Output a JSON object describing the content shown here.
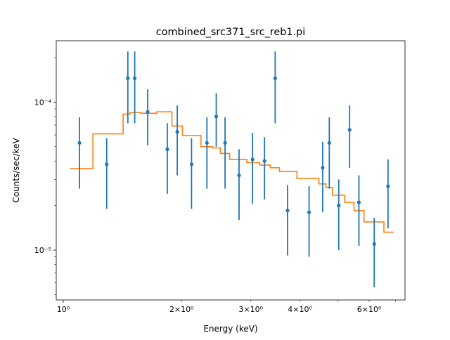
{
  "chart_data": {
    "type": "scatter",
    "title": "combined_src371_src_reb1.pi",
    "xlabel": "Energy (keV)",
    "ylabel": "Counts/sec/keV",
    "xscale": "log",
    "yscale": "log",
    "xlim": [
      0.96,
      7.4
    ],
    "ylim": [
      4.6e-06,
      0.00026
    ],
    "grid": false,
    "x_major_ticks": [
      {
        "value": 1,
        "label": "10⁰"
      }
    ],
    "x_minor_ticks": [
      {
        "value": 2,
        "label": "2×10⁰"
      },
      {
        "value": 3,
        "label": "3×10⁰"
      },
      {
        "value": 4,
        "label": "4×10⁰"
      },
      {
        "value": 5,
        "label": ""
      },
      {
        "value": 6,
        "label": "6×10⁰"
      },
      {
        "value": 7,
        "label": ""
      }
    ],
    "y_major_ticks": [
      {
        "value": 1e-05,
        "label": "10⁻⁵"
      },
      {
        "value": 0.0001,
        "label": "10⁻⁴"
      }
    ],
    "y_minor_values": [
      5e-06,
      6e-06,
      7e-06,
      8e-06,
      9e-06,
      2e-05,
      3e-05,
      4e-05,
      5e-05,
      6e-05,
      7e-05,
      8e-05,
      9e-05,
      0.0002
    ],
    "colors": {
      "data": "#1f77b4",
      "model": "#ff7f0e"
    },
    "series": [
      {
        "kind": "errorbar",
        "points": [
          {
            "x": 1.1,
            "y": 5.3e-05,
            "ylo": 2.6e-05,
            "yhi": 7.9e-05
          },
          {
            "x": 1.29,
            "y": 3.8e-05,
            "ylo": 1.9e-05,
            "yhi": 5.7e-05
          },
          {
            "x": 1.46,
            "y": 0.000145,
            "ylo": 7.2e-05,
            "yhi": 0.00022
          },
          {
            "x": 1.52,
            "y": 0.000145,
            "ylo": 7.2e-05,
            "yhi": 0.00022
          },
          {
            "x": 1.64,
            "y": 8.6e-05,
            "ylo": 5.1e-05,
            "yhi": 0.000122
          },
          {
            "x": 1.84,
            "y": 4.8e-05,
            "ylo": 2.4e-05,
            "yhi": 7.2e-05
          },
          {
            "x": 1.95,
            "y": 6.3e-05,
            "ylo": 3.2e-05,
            "yhi": 9.5e-05
          },
          {
            "x": 2.12,
            "y": 3.8e-05,
            "ylo": 1.9e-05,
            "yhi": 5.7e-05
          },
          {
            "x": 2.32,
            "y": 5.3e-05,
            "ylo": 2.6e-05,
            "yhi": 7.9e-05
          },
          {
            "x": 2.45,
            "y": 8e-05,
            "ylo": 5e-05,
            "yhi": 0.000115
          },
          {
            "x": 2.58,
            "y": 5.3e-05,
            "ylo": 2.6e-05,
            "yhi": 7.9e-05
          },
          {
            "x": 2.8,
            "y": 3.2e-05,
            "ylo": 1.6e-05,
            "yhi": 4.8e-05
          },
          {
            "x": 3.03,
            "y": 4.1e-05,
            "ylo": 2.05e-05,
            "yhi": 6.2e-05
          },
          {
            "x": 3.25,
            "y": 4e-05,
            "ylo": 2.2e-05,
            "yhi": 5.8e-05
          },
          {
            "x": 3.46,
            "y": 0.000145,
            "ylo": 7.2e-05,
            "yhi": 0.00022
          },
          {
            "x": 3.72,
            "y": 1.85e-05,
            "ylo": 9.2e-06,
            "yhi": 2.75e-05
          },
          {
            "x": 4.22,
            "y": 1.8e-05,
            "ylo": 9e-06,
            "yhi": 2.7e-05
          },
          {
            "x": 4.57,
            "y": 3.6e-05,
            "ylo": 1.8e-05,
            "yhi": 5.4e-05
          },
          {
            "x": 4.75,
            "y": 5.3e-05,
            "ylo": 2.6e-05,
            "yhi": 7.9e-05
          },
          {
            "x": 5.02,
            "y": 2e-05,
            "ylo": 1e-05,
            "yhi": 3e-05
          },
          {
            "x": 5.35,
            "y": 6.5e-05,
            "ylo": 3.6e-05,
            "yhi": 9.5e-05
          },
          {
            "x": 5.65,
            "y": 2.1e-05,
            "ylo": 1.07e-05,
            "yhi": 3.2e-05
          },
          {
            "x": 6.18,
            "y": 1.1e-05,
            "ylo": 5.6e-06,
            "yhi": 1.65e-05
          },
          {
            "x": 6.7,
            "y": 2.7e-05,
            "ylo": 1.4e-05,
            "yhi": 4.1e-05
          }
        ]
      },
      {
        "kind": "step",
        "steps": [
          {
            "x0": 1.04,
            "x1": 1.19,
            "y": 3.55e-05
          },
          {
            "x0": 1.19,
            "x1": 1.42,
            "y": 6.1e-05
          },
          {
            "x0": 1.42,
            "x1": 1.48,
            "y": 8.3e-05
          },
          {
            "x0": 1.48,
            "x1": 1.58,
            "y": 8.5e-05
          },
          {
            "x0": 1.58,
            "x1": 1.73,
            "y": 8.4e-05
          },
          {
            "x0": 1.73,
            "x1": 1.89,
            "y": 8.6e-05
          },
          {
            "x0": 1.89,
            "x1": 2.01,
            "y": 6.9e-05
          },
          {
            "x0": 2.01,
            "x1": 2.24,
            "y": 5.95e-05
          },
          {
            "x0": 2.24,
            "x1": 2.4,
            "y": 5e-05
          },
          {
            "x0": 2.4,
            "x1": 2.51,
            "y": 4.9e-05
          },
          {
            "x0": 2.51,
            "x1": 2.65,
            "y": 4.5e-05
          },
          {
            "x0": 2.65,
            "x1": 2.93,
            "y": 4.1e-05
          },
          {
            "x0": 2.93,
            "x1": 3.16,
            "y": 3.9e-05
          },
          {
            "x0": 3.16,
            "x1": 3.36,
            "y": 3.75e-05
          },
          {
            "x0": 3.36,
            "x1": 3.55,
            "y": 3.6e-05
          },
          {
            "x0": 3.55,
            "x1": 3.93,
            "y": 3.4e-05
          },
          {
            "x0": 3.93,
            "x1": 4.47,
            "y": 3.05e-05
          },
          {
            "x0": 4.47,
            "x1": 4.66,
            "y": 2.8e-05
          },
          {
            "x0": 4.66,
            "x1": 4.84,
            "y": 2.65e-05
          },
          {
            "x0": 4.84,
            "x1": 5.2,
            "y": 2.35e-05
          },
          {
            "x0": 5.2,
            "x1": 5.49,
            "y": 2.1e-05
          },
          {
            "x0": 5.49,
            "x1": 5.82,
            "y": 1.85e-05
          },
          {
            "x0": 5.82,
            "x1": 6.54,
            "y": 1.55e-05
          },
          {
            "x0": 6.54,
            "x1": 6.92,
            "y": 1.32e-05
          }
        ]
      }
    ]
  }
}
